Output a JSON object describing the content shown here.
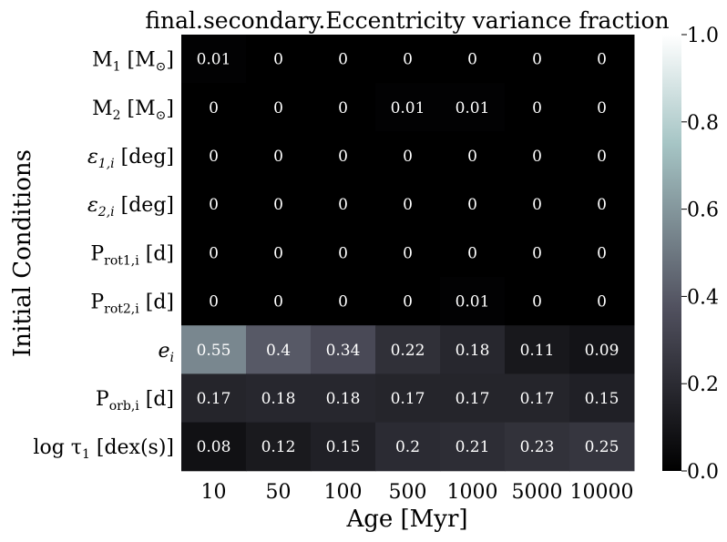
{
  "chart_data": {
    "type": "heatmap",
    "title": "final.secondary.Eccentricity variance fraction",
    "xlabel": "Age [Myr]",
    "ylabel": "Initial Conditions",
    "x_categories": [
      "10",
      "50",
      "100",
      "500",
      "1000",
      "5000",
      "10000"
    ],
    "y_categories": [
      {
        "base": "M",
        "sub": "1",
        "unit": " [M",
        "unit_sub": "⊙",
        "close": "]"
      },
      {
        "base": "M",
        "sub": "2",
        "unit": " [M",
        "unit_sub": "⊙",
        "close": "]"
      },
      {
        "base": "ε",
        "sub": "1,i",
        "unit": " [deg]",
        "unit_sub": "",
        "close": ""
      },
      {
        "base": "ε",
        "sub": "2,i",
        "unit": " [deg]",
        "unit_sub": "",
        "close": ""
      },
      {
        "base": "P",
        "sub": "rot1,i",
        "unit": " [d]",
        "unit_sub": "",
        "close": ""
      },
      {
        "base": "P",
        "sub": "rot2,i",
        "unit": " [d]",
        "unit_sub": "",
        "close": ""
      },
      {
        "base": "e",
        "sub": "i",
        "unit": "",
        "unit_sub": "",
        "close": ""
      },
      {
        "base": "P",
        "sub": "orb,i",
        "unit": " [d]",
        "unit_sub": "",
        "close": ""
      },
      {
        "base": "log τ",
        "sub": "1",
        "unit": " [dex(s)]",
        "unit_sub": "",
        "close": ""
      }
    ],
    "values": [
      [
        0.01,
        0,
        0,
        0,
        0,
        0,
        0
      ],
      [
        0,
        0,
        0,
        0.01,
        0.01,
        0,
        0
      ],
      [
        0,
        0,
        0,
        0,
        0,
        0,
        0
      ],
      [
        0,
        0,
        0,
        0,
        0,
        0,
        0
      ],
      [
        0,
        0,
        0,
        0,
        0,
        0,
        0
      ],
      [
        0,
        0,
        0,
        0,
        0.01,
        0,
        0
      ],
      [
        0.55,
        0.4,
        0.34,
        0.22,
        0.18,
        0.11,
        0.09
      ],
      [
        0.17,
        0.18,
        0.18,
        0.17,
        0.17,
        0.17,
        0.15
      ],
      [
        0.08,
        0.12,
        0.15,
        0.2,
        0.21,
        0.23,
        0.25
      ]
    ],
    "colorbar": {
      "min": 0.0,
      "max": 1.0,
      "ticks": [
        "0.0",
        "0.2",
        "0.4",
        "0.6",
        "0.8",
        "1.0"
      ],
      "colormap": "bone"
    }
  }
}
